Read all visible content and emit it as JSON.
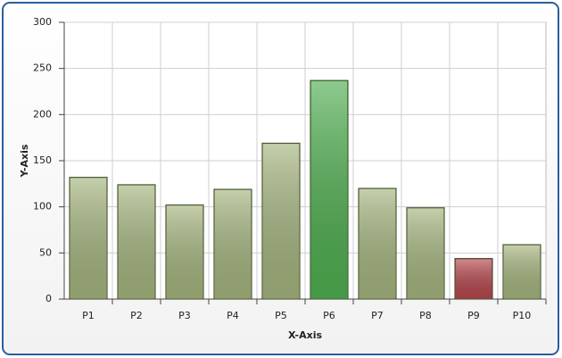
{
  "chart_data": {
    "type": "bar",
    "x_label": "X-Axis",
    "y_label": "Y-Axis",
    "categories": [
      "P1",
      "P2",
      "P3",
      "P4",
      "P5",
      "P6",
      "P7",
      "P8",
      "P9",
      "P10"
    ],
    "values": [
      132,
      124,
      102,
      119,
      169,
      237,
      120,
      99,
      44,
      59
    ],
    "colors": [
      "#a4b47e",
      "#a4b47e",
      "#a4b47e",
      "#a4b47e",
      "#a4b47e",
      "#4fae50",
      "#a4b47e",
      "#a4b47e",
      "#b4474d",
      "#a4b47e"
    ],
    "ylim": [
      0,
      300
    ],
    "yticks": [
      0,
      50,
      100,
      150,
      200,
      250,
      300
    ],
    "grid": true
  }
}
